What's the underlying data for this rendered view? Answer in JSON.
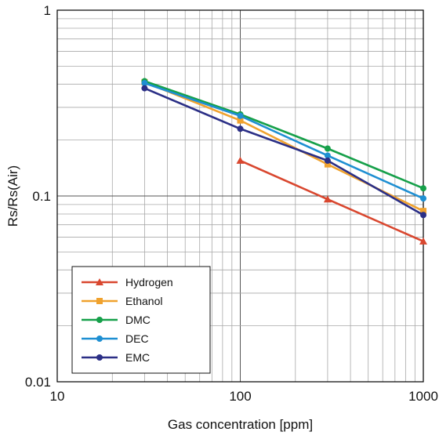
{
  "chart_data": {
    "type": "line",
    "xscale": "log",
    "yscale": "log",
    "xlim": [
      10,
      1000
    ],
    "ylim": [
      0.01,
      1
    ],
    "xlabel": "Gas concentration [ppm]",
    "ylabel": "Rs/Rs(Air)",
    "x_ticks": [
      {
        "value": 10,
        "label": "10"
      },
      {
        "value": 100,
        "label": "100"
      },
      {
        "value": 1000,
        "label": "1000"
      }
    ],
    "y_ticks": [
      {
        "value": 1,
        "label": "1"
      },
      {
        "value": 0.1,
        "label": "0.1"
      },
      {
        "value": 0.01,
        "label": "0.01"
      }
    ],
    "grid": true,
    "legend": "bottom-left",
    "series": [
      {
        "name": "Hydrogen",
        "color": "#d9472f",
        "marker": "triangle",
        "x": [
          100,
          300,
          1000
        ],
        "y": [
          0.155,
          0.096,
          0.057
        ]
      },
      {
        "name": "Ethanol",
        "color": "#f0a22e",
        "marker": "square",
        "x": [
          30,
          100,
          300,
          1000
        ],
        "y": [
          0.41,
          0.255,
          0.148,
          0.083
        ]
      },
      {
        "name": "DMC",
        "color": "#16a04a",
        "marker": "circle",
        "x": [
          30,
          100,
          300,
          1000
        ],
        "y": [
          0.415,
          0.275,
          0.18,
          0.11
        ]
      },
      {
        "name": "DEC",
        "color": "#1e8fd2",
        "marker": "circle",
        "x": [
          30,
          100,
          300,
          1000
        ],
        "y": [
          0.405,
          0.27,
          0.165,
          0.097
        ]
      },
      {
        "name": "EMC",
        "color": "#2b2f86",
        "marker": "circle",
        "x": [
          30,
          100,
          300,
          1000
        ],
        "y": [
          0.38,
          0.23,
          0.155,
          0.079
        ]
      }
    ]
  }
}
